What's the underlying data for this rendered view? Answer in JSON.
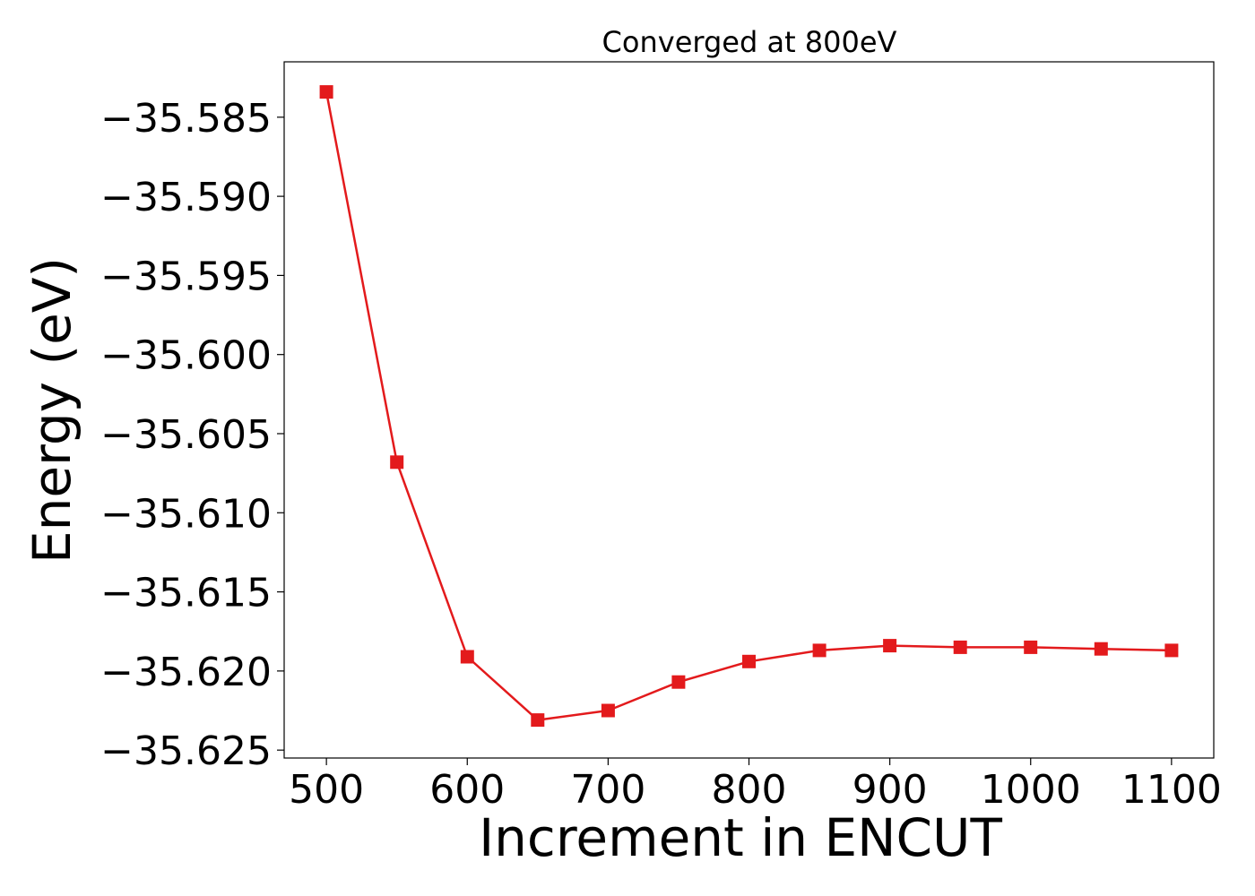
{
  "chart_data": {
    "type": "line",
    "title": "Converged at 800eV",
    "xlabel": "Increment in ENCUT",
    "ylabel": "Energy (eV)",
    "x": [
      500,
      550,
      600,
      650,
      700,
      750,
      800,
      850,
      900,
      950,
      1000,
      1050,
      1100
    ],
    "series": [
      {
        "values": [
          -35.5834,
          -35.6068,
          -35.6191,
          -35.6231,
          -35.6225,
          -35.6207,
          -35.6194,
          -35.6187,
          -35.6184,
          -35.6185,
          -35.6185,
          -35.6186,
          -35.6187
        ],
        "color": "#e31a1c",
        "marker": "square"
      }
    ],
    "xticks": [
      500,
      600,
      700,
      800,
      900,
      1000,
      1100
    ],
    "xtick_labels": [
      "500",
      "600",
      "700",
      "800",
      "900",
      "1000",
      "1100"
    ],
    "yticks": [
      -35.585,
      -35.59,
      -35.595,
      -35.6,
      -35.605,
      -35.61,
      -35.615,
      -35.62,
      -35.625
    ],
    "ytick_labels": [
      "−35.585",
      "−35.590",
      "−35.595",
      "−35.600",
      "−35.605",
      "−35.610",
      "−35.615",
      "−35.620",
      "−35.625"
    ],
    "xlim": [
      470,
      1130
    ],
    "ylim": [
      -35.6255,
      -35.5815
    ],
    "grid": false,
    "legend": "none"
  }
}
